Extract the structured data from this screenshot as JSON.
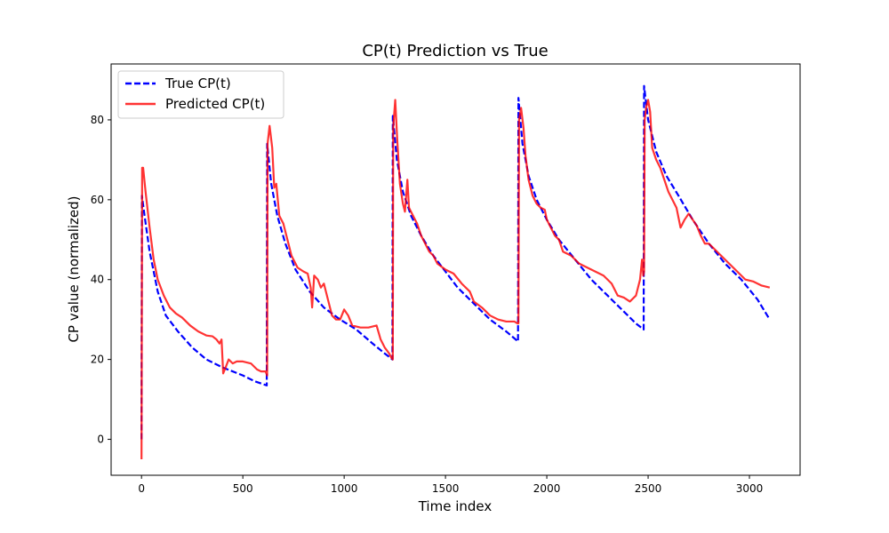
{
  "chart_data": {
    "type": "line",
    "title": "CP(t) Prediction vs True",
    "xlabel": "Time index",
    "ylabel": "CP value (normalized)",
    "xlim": [
      -150,
      3250
    ],
    "ylim": [
      -9,
      94
    ],
    "xticks": [
      0,
      500,
      1000,
      1500,
      2000,
      2500,
      3000
    ],
    "yticks": [
      0,
      20,
      40,
      60,
      80
    ],
    "grid": false,
    "legend_position": "top-left",
    "series": [
      {
        "name": "True CP(t)",
        "color": "#0000ff",
        "style": "dashed",
        "points": [
          [
            0,
            0
          ],
          [
            2,
            61
          ],
          [
            15,
            56
          ],
          [
            40,
            47
          ],
          [
            80,
            37
          ],
          [
            120,
            31
          ],
          [
            180,
            27
          ],
          [
            250,
            23
          ],
          [
            320,
            20
          ],
          [
            400,
            18
          ],
          [
            500,
            16
          ],
          [
            560,
            14.5
          ],
          [
            618,
            13.5
          ],
          [
            620,
            74
          ],
          [
            640,
            64
          ],
          [
            670,
            56
          ],
          [
            710,
            49
          ],
          [
            760,
            42.5
          ],
          [
            830,
            37
          ],
          [
            900,
            33
          ],
          [
            980,
            30
          ],
          [
            1060,
            27.5
          ],
          [
            1140,
            24
          ],
          [
            1200,
            21.5
          ],
          [
            1238,
            20
          ],
          [
            1240,
            81
          ],
          [
            1260,
            70
          ],
          [
            1290,
            62
          ],
          [
            1330,
            56
          ],
          [
            1380,
            51
          ],
          [
            1440,
            46
          ],
          [
            1500,
            42
          ],
          [
            1560,
            38
          ],
          [
            1640,
            34
          ],
          [
            1720,
            30
          ],
          [
            1800,
            27
          ],
          [
            1858,
            24.5
          ],
          [
            1860,
            85.5
          ],
          [
            1880,
            74
          ],
          [
            1910,
            66
          ],
          [
            1950,
            60
          ],
          [
            2000,
            55
          ],
          [
            2060,
            50
          ],
          [
            2140,
            45
          ],
          [
            2220,
            40
          ],
          [
            2300,
            36
          ],
          [
            2380,
            32
          ],
          [
            2440,
            29
          ],
          [
            2478,
            27.5
          ],
          [
            2480,
            88.5
          ],
          [
            2500,
            80
          ],
          [
            2540,
            72
          ],
          [
            2590,
            66
          ],
          [
            2650,
            61
          ],
          [
            2720,
            55
          ],
          [
            2800,
            49
          ],
          [
            2880,
            44
          ],
          [
            2960,
            40
          ],
          [
            3040,
            35
          ],
          [
            3100,
            30
          ]
        ]
      },
      {
        "name": "Predicted CP(t)",
        "color": "#ff0000",
        "style": "solid",
        "points": [
          [
            0,
            -5
          ],
          [
            3,
            68
          ],
          [
            8,
            68
          ],
          [
            20,
            62
          ],
          [
            40,
            53
          ],
          [
            60,
            45
          ],
          [
            80,
            40
          ],
          [
            110,
            36
          ],
          [
            140,
            33
          ],
          [
            170,
            31.5
          ],
          [
            200,
            30.5
          ],
          [
            240,
            28.5
          ],
          [
            280,
            27
          ],
          [
            320,
            26
          ],
          [
            350,
            25.8
          ],
          [
            370,
            25
          ],
          [
            385,
            24
          ],
          [
            395,
            25
          ],
          [
            403,
            16.5
          ],
          [
            415,
            18
          ],
          [
            430,
            20
          ],
          [
            450,
            19
          ],
          [
            470,
            19.5
          ],
          [
            500,
            19.5
          ],
          [
            540,
            19
          ],
          [
            570,
            17.5
          ],
          [
            590,
            17
          ],
          [
            612,
            17
          ],
          [
            620,
            16
          ],
          [
            622,
            74
          ],
          [
            632,
            78.5
          ],
          [
            645,
            73
          ],
          [
            655,
            63
          ],
          [
            665,
            64
          ],
          [
            680,
            56
          ],
          [
            700,
            54
          ],
          [
            720,
            50
          ],
          [
            740,
            46
          ],
          [
            770,
            43
          ],
          [
            800,
            42
          ],
          [
            820,
            41.5
          ],
          [
            835,
            38
          ],
          [
            842,
            33
          ],
          [
            852,
            41
          ],
          [
            870,
            40
          ],
          [
            885,
            38
          ],
          [
            900,
            39
          ],
          [
            920,
            35
          ],
          [
            940,
            31
          ],
          [
            960,
            30
          ],
          [
            980,
            30
          ],
          [
            1000,
            32.5
          ],
          [
            1020,
            31
          ],
          [
            1040,
            28.5
          ],
          [
            1080,
            28
          ],
          [
            1120,
            28
          ],
          [
            1160,
            28.5
          ],
          [
            1180,
            25
          ],
          [
            1200,
            23
          ],
          [
            1222,
            21.5
          ],
          [
            1232,
            20.5
          ],
          [
            1240,
            20
          ],
          [
            1242,
            78
          ],
          [
            1252,
            85
          ],
          [
            1262,
            75
          ],
          [
            1275,
            64
          ],
          [
            1290,
            59
          ],
          [
            1300,
            57
          ],
          [
            1312,
            65
          ],
          [
            1320,
            58
          ],
          [
            1340,
            56
          ],
          [
            1360,
            54
          ],
          [
            1380,
            51
          ],
          [
            1400,
            49
          ],
          [
            1420,
            47
          ],
          [
            1440,
            46
          ],
          [
            1460,
            44
          ],
          [
            1500,
            42.5
          ],
          [
            1540,
            41.5
          ],
          [
            1580,
            39
          ],
          [
            1620,
            37
          ],
          [
            1640,
            34.5
          ],
          [
            1680,
            33
          ],
          [
            1720,
            31
          ],
          [
            1760,
            30
          ],
          [
            1800,
            29.5
          ],
          [
            1840,
            29.5
          ],
          [
            1856,
            29
          ],
          [
            1860,
            29
          ],
          [
            1863,
            80
          ],
          [
            1873,
            83
          ],
          [
            1885,
            78
          ],
          [
            1895,
            71
          ],
          [
            1910,
            65
          ],
          [
            1930,
            61
          ],
          [
            1950,
            59
          ],
          [
            1970,
            58
          ],
          [
            1990,
            57.5
          ],
          [
            2000,
            55
          ],
          [
            2020,
            53
          ],
          [
            2040,
            51
          ],
          [
            2060,
            50
          ],
          [
            2080,
            47
          ],
          [
            2120,
            46
          ],
          [
            2160,
            44
          ],
          [
            2200,
            43
          ],
          [
            2240,
            42
          ],
          [
            2280,
            41
          ],
          [
            2300,
            40
          ],
          [
            2320,
            39
          ],
          [
            2350,
            36
          ],
          [
            2380,
            35.5
          ],
          [
            2410,
            34.5
          ],
          [
            2440,
            36
          ],
          [
            2460,
            40
          ],
          [
            2470,
            45
          ],
          [
            2476,
            41
          ],
          [
            2480,
            42
          ],
          [
            2483,
            80
          ],
          [
            2490,
            83
          ],
          [
            2500,
            85
          ],
          [
            2510,
            82
          ],
          [
            2520,
            73
          ],
          [
            2540,
            70
          ],
          [
            2560,
            68
          ],
          [
            2580,
            65
          ],
          [
            2600,
            62
          ],
          [
            2620,
            60
          ],
          [
            2640,
            58
          ],
          [
            2660,
            53
          ],
          [
            2680,
            55
          ],
          [
            2700,
            56.5
          ],
          [
            2720,
            55
          ],
          [
            2740,
            53.5
          ],
          [
            2760,
            51
          ],
          [
            2780,
            49
          ],
          [
            2800,
            49
          ],
          [
            2830,
            47.5
          ],
          [
            2860,
            46
          ],
          [
            2890,
            44.5
          ],
          [
            2920,
            43
          ],
          [
            2950,
            41.5
          ],
          [
            2980,
            40
          ],
          [
            3020,
            39.5
          ],
          [
            3060,
            38.5
          ],
          [
            3100,
            38
          ]
        ]
      }
    ]
  }
}
